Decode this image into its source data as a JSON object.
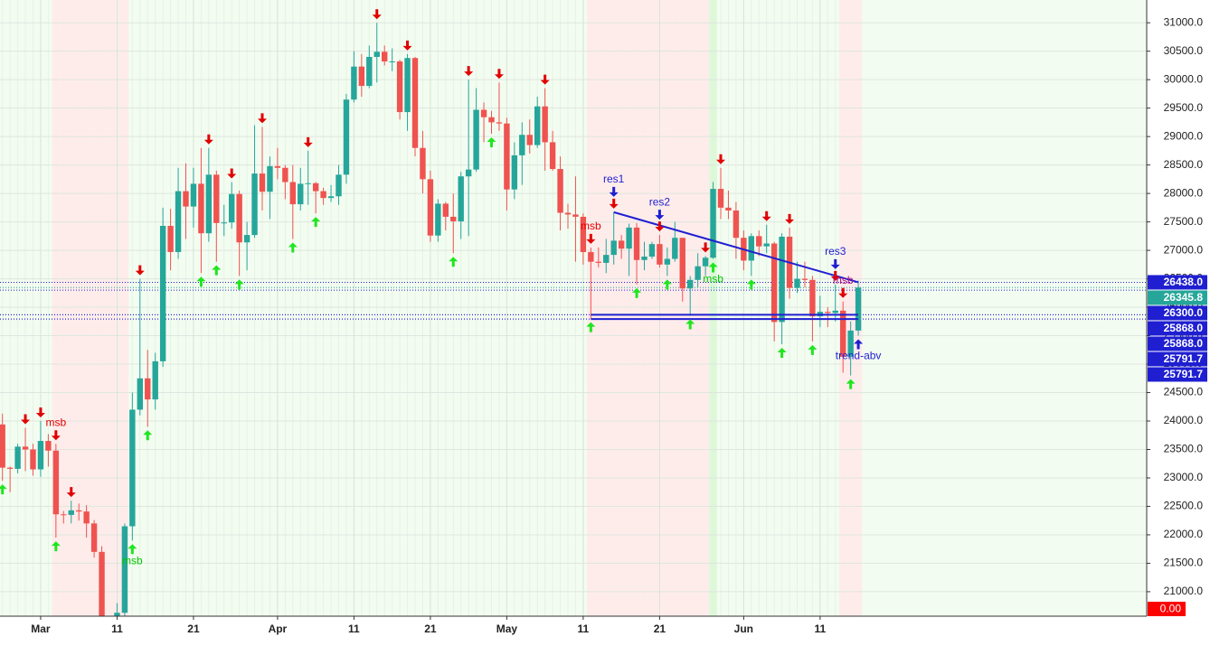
{
  "chart_data": {
    "type": "candlestick",
    "up_color": "#26a69a",
    "down_color": "#ef5350",
    "ohlc": [
      [
        23940,
        24130,
        22950,
        23180
      ],
      [
        23180,
        23200,
        22750,
        23160
      ],
      [
        23160,
        23600,
        23080,
        23550
      ],
      [
        23550,
        23880,
        23120,
        23500
      ],
      [
        23500,
        23600,
        23040,
        23150
      ],
      [
        23150,
        24000,
        23020,
        23650
      ],
      [
        23650,
        23770,
        23200,
        23480
      ],
      [
        23480,
        23600,
        21950,
        22360
      ],
      [
        22360,
        22420,
        22200,
        22350
      ],
      [
        22350,
        22600,
        22200,
        22430
      ],
      [
        22430,
        22550,
        22250,
        22410
      ],
      [
        22410,
        22520,
        21950,
        22200
      ],
      [
        22200,
        22260,
        21600,
        21700
      ],
      [
        21700,
        21800,
        20050,
        20360
      ],
      [
        20360,
        20450,
        19550,
        20190
      ],
      [
        20190,
        20800,
        19900,
        20630
      ],
      [
        20630,
        22200,
        20450,
        22150
      ],
      [
        22150,
        24500,
        21900,
        24200
      ],
      [
        24200,
        26500,
        24100,
        24750
      ],
      [
        24750,
        25250,
        23900,
        24380
      ],
      [
        24380,
        25200,
        24200,
        25050
      ],
      [
        25050,
        27750,
        24950,
        27430
      ],
      [
        27430,
        27730,
        26650,
        26970
      ],
      [
        26970,
        28450,
        26850,
        28040
      ],
      [
        28040,
        28530,
        27200,
        27770
      ],
      [
        27770,
        28450,
        27400,
        28170
      ],
      [
        28170,
        28800,
        26600,
        27300
      ],
      [
        27300,
        28800,
        27150,
        28330
      ],
      [
        28330,
        28400,
        26800,
        27480
      ],
      [
        27480,
        27800,
        27250,
        27490
      ],
      [
        27490,
        28200,
        27380,
        27990
      ],
      [
        27990,
        28050,
        26550,
        27140
      ],
      [
        27140,
        27500,
        26650,
        27270
      ],
      [
        27270,
        29200,
        27220,
        28350
      ],
      [
        28350,
        29170,
        27700,
        28030
      ],
      [
        28030,
        28650,
        27550,
        28480
      ],
      [
        28480,
        28800,
        28250,
        28450
      ],
      [
        28450,
        28500,
        27900,
        28200
      ],
      [
        28200,
        28500,
        27200,
        27810
      ],
      [
        27810,
        28450,
        27700,
        28170
      ],
      [
        28170,
        28750,
        27800,
        28180
      ],
      [
        28180,
        28200,
        27650,
        28040
      ],
      [
        28040,
        28100,
        27800,
        27920
      ],
      [
        27920,
        28150,
        27850,
        27950
      ],
      [
        27950,
        28500,
        27800,
        28330
      ],
      [
        28330,
        29750,
        28170,
        29650
      ],
      [
        29650,
        30500,
        29600,
        30230
      ],
      [
        30230,
        30450,
        29700,
        29890
      ],
      [
        29890,
        30600,
        29850,
        30400
      ],
      [
        30400,
        31000,
        29950,
        30490
      ],
      [
        30490,
        30600,
        30250,
        30320
      ],
      [
        30320,
        30550,
        30150,
        30320
      ],
      [
        30320,
        30350,
        29300,
        29430
      ],
      [
        29430,
        30450,
        29100,
        30380
      ],
      [
        30380,
        30400,
        28650,
        28800
      ],
      [
        28800,
        29100,
        28000,
        28250
      ],
      [
        28250,
        28400,
        27150,
        27260
      ],
      [
        27260,
        27900,
        27150,
        27820
      ],
      [
        27820,
        27850,
        27350,
        27590
      ],
      [
        27590,
        28000,
        26950,
        27510
      ],
      [
        27510,
        28380,
        27200,
        28300
      ],
      [
        28300,
        30000,
        27250,
        28420
      ],
      [
        28420,
        29850,
        28380,
        29470
      ],
      [
        29470,
        29600,
        28900,
        29340
      ],
      [
        29340,
        29450,
        29050,
        29250
      ],
      [
        29250,
        29950,
        29100,
        29230
      ],
      [
        29230,
        29330,
        27700,
        28070
      ],
      [
        28070,
        28900,
        27900,
        28670
      ],
      [
        28670,
        29250,
        28150,
        29030
      ],
      [
        29030,
        29300,
        28700,
        28850
      ],
      [
        28850,
        29700,
        28800,
        29530
      ],
      [
        29530,
        29850,
        28400,
        28900
      ],
      [
        28900,
        29100,
        28400,
        28430
      ],
      [
        28430,
        28650,
        27350,
        27660
      ],
      [
        27660,
        27820,
        27380,
        27630
      ],
      [
        27630,
        28300,
        26800,
        27590
      ],
      [
        27590,
        27650,
        26750,
        26970
      ],
      [
        26970,
        27050,
        25800,
        26800
      ],
      [
        26800,
        27050,
        26700,
        26780
      ],
      [
        26780,
        27200,
        26600,
        26920
      ],
      [
        26920,
        27670,
        26750,
        27170
      ],
      [
        27170,
        27270,
        26850,
        27030
      ],
      [
        27030,
        27470,
        26550,
        27400
      ],
      [
        27400,
        27480,
        26400,
        26830
      ],
      [
        26830,
        27150,
        26650,
        26890
      ],
      [
        26890,
        27150,
        26850,
        27110
      ],
      [
        27110,
        27270,
        26700,
        26750
      ],
      [
        26750,
        27050,
        26550,
        26850
      ],
      [
        26850,
        27500,
        26800,
        27220
      ],
      [
        27220,
        27220,
        26100,
        26330
      ],
      [
        26330,
        26550,
        25850,
        26480
      ],
      [
        26480,
        26950,
        26350,
        26720
      ],
      [
        26720,
        26900,
        26550,
        26870
      ],
      [
        26870,
        28200,
        26850,
        28080
      ],
      [
        28080,
        28450,
        27550,
        27750
      ],
      [
        27750,
        28050,
        27550,
        27700
      ],
      [
        27700,
        27850,
        26850,
        27220
      ],
      [
        27220,
        27350,
        26650,
        26820
      ],
      [
        26820,
        27300,
        26550,
        27250
      ],
      [
        27250,
        27350,
        26900,
        27070
      ],
      [
        27070,
        27450,
        26950,
        27120
      ],
      [
        27120,
        27150,
        25400,
        25740
      ],
      [
        25740,
        27300,
        25350,
        27240
      ],
      [
        27240,
        27400,
        26150,
        26340
      ],
      [
        26340,
        26800,
        26250,
        26500
      ],
      [
        26500,
        26800,
        26350,
        26480
      ],
      [
        26480,
        26550,
        25400,
        25840
      ],
      [
        25840,
        26200,
        25650,
        25920
      ],
      [
        25920,
        26000,
        25650,
        25900
      ],
      [
        25900,
        26400,
        25750,
        25940
      ],
      [
        25940,
        26100,
        24850,
        25130
      ],
      [
        25130,
        25750,
        24800,
        25590
      ],
      [
        25590,
        26470,
        25500,
        26345.8
      ]
    ],
    "ylim": [
      20570,
      31400
    ],
    "yticks": [
      {
        "value": 21000,
        "label": "21000.0"
      },
      {
        "value": 21500,
        "label": "21500.0"
      },
      {
        "value": 22000,
        "label": "22000.0"
      },
      {
        "value": 22500,
        "label": "22500.0"
      },
      {
        "value": 23000,
        "label": "23000.0"
      },
      {
        "value": 23500,
        "label": "23500.0"
      },
      {
        "value": 24000,
        "label": "24000.0"
      },
      {
        "value": 24500,
        "label": "24500.0"
      },
      {
        "value": 25000,
        "label": "25000.0"
      },
      {
        "value": 25500,
        "label": "25500.0"
      },
      {
        "value": 26000,
        "label": "26000.0"
      },
      {
        "value": 26500,
        "label": "26500.0"
      },
      {
        "value": 27000,
        "label": "27000.0"
      },
      {
        "value": 27500,
        "label": "27500.0"
      },
      {
        "value": 28000,
        "label": "28000.0"
      },
      {
        "value": 28500,
        "label": "28500.0"
      },
      {
        "value": 29000,
        "label": "29000.0"
      },
      {
        "value": 29500,
        "label": "29500.0"
      },
      {
        "value": 30000,
        "label": "30000.0"
      },
      {
        "value": 30500,
        "label": "30500.0"
      },
      {
        "value": 31000,
        "label": "31000.0"
      }
    ],
    "xticks": [
      {
        "value": 5,
        "label": "Mar"
      },
      {
        "value": 15,
        "label": "11"
      },
      {
        "value": 25,
        "label": "21"
      },
      {
        "value": 36,
        "label": "Apr"
      },
      {
        "value": 46,
        "label": "11"
      },
      {
        "value": 56,
        "label": "21"
      },
      {
        "value": 66,
        "label": "May"
      },
      {
        "value": 76,
        "label": "11"
      },
      {
        "value": 86,
        "label": "21"
      },
      {
        "value": 97,
        "label": "Jun"
      },
      {
        "value": 107,
        "label": "11"
      }
    ],
    "grid": true,
    "regions": [
      {
        "from": 7,
        "to": 16,
        "color": "#ffe9ea"
      },
      {
        "from": 77,
        "to": 92,
        "color": "#ffe9ea"
      },
      {
        "from": 93,
        "to": 93,
        "color": "#d9f7d6"
      },
      {
        "from": 110,
        "to": 112,
        "color": "#ffe9ea"
      }
    ],
    "signals_down": [
      3,
      5,
      7,
      9,
      18,
      27,
      30,
      34,
      40,
      49,
      53,
      61,
      65,
      71,
      77,
      80,
      86,
      92,
      94,
      100,
      103,
      109,
      110
    ],
    "signals_up": [
      0,
      7,
      17,
      19,
      26,
      28,
      31,
      38,
      41,
      59,
      64,
      77,
      83,
      87,
      90,
      93,
      98,
      102,
      106,
      111
    ],
    "annotations": [
      {
        "text": "msb",
        "index": 7,
        "side": "high",
        "color": "#e00000"
      },
      {
        "text": "msb",
        "index": 17,
        "side": "low",
        "color": "#00c800"
      },
      {
        "text": "msb",
        "index": 77,
        "side": "high",
        "color": "#e00000"
      },
      {
        "text": "res1",
        "index": 80,
        "side": "high",
        "color": "#1f1fd1",
        "arrow": true
      },
      {
        "text": "res2",
        "index": 86,
        "side": "high",
        "color": "#1f1fd1",
        "arrow": true
      },
      {
        "text": "msb",
        "index": 93,
        "side": "low",
        "color": "#00c800"
      },
      {
        "text": "res3",
        "index": 109,
        "side": "high",
        "color": "#1f1fd1",
        "arrow": true
      },
      {
        "text": "msb",
        "index": 110,
        "side": "high",
        "color": "#b0107a"
      },
      {
        "text": "trend-abv",
        "index": 112,
        "side": "low",
        "color": "#1f1fd1",
        "arrow": true
      }
    ],
    "lines": [
      {
        "from": [
          80,
          27670
        ],
        "to": [
          112,
          26438
        ],
        "color": "#1f1fd1"
      },
      {
        "from": [
          77,
          25868
        ],
        "to": [
          112,
          25868
        ],
        "color": "#1f1fd1"
      },
      {
        "from": [
          77,
          25791.7
        ],
        "to": [
          112,
          25791.7
        ],
        "color": "#1f1fd1"
      }
    ],
    "levels": [
      {
        "value": 26438,
        "label": "26438.0",
        "color": "#1f1fd1"
      },
      {
        "value": 26345.8,
        "label": "26345.8",
        "color": "#26a69a"
      },
      {
        "value": 26300,
        "label": "26300.0",
        "color": "#1f1fd1"
      },
      {
        "value": 25868,
        "label": "25868.0",
        "color": "#1f1fd1"
      },
      {
        "value": 25868,
        "label": "25868.0",
        "color": "#1f1fd1"
      },
      {
        "value": 25791.7,
        "label": "25791.7",
        "color": "#1f1fd1"
      },
      {
        "value": 25791.7,
        "label": "25791.7",
        "color": "#1f1fd1"
      }
    ],
    "status_label": "0.00"
  }
}
